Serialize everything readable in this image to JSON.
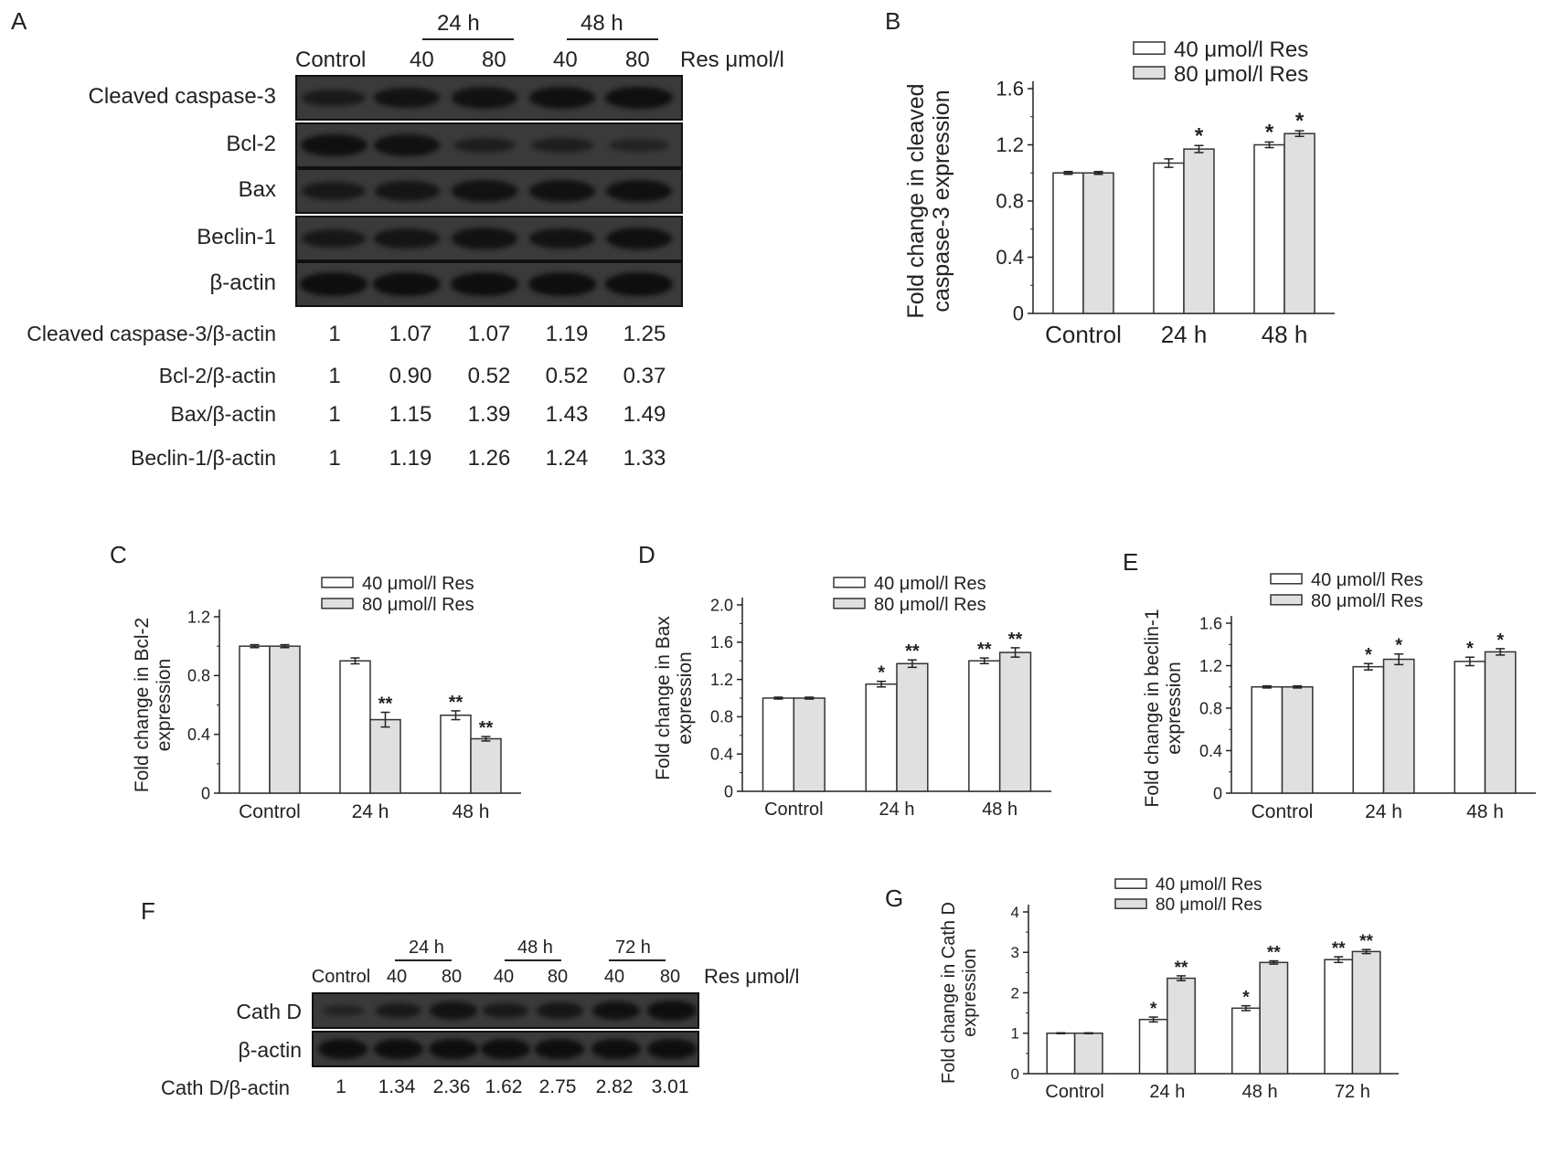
{
  "panels": {
    "A": "A",
    "B": "B",
    "C": "C",
    "D": "D",
    "E": "E",
    "F": "F",
    "G": "G"
  },
  "blot_a": {
    "time_labels": [
      "24 h",
      "48 h"
    ],
    "lane_labels": [
      "Control",
      "40",
      "80",
      "40",
      "80"
    ],
    "unit_label": "Res μmol/l",
    "rows": [
      {
        "label": "Cleaved caspase-3",
        "intensity": [
          0.55,
          0.8,
          0.82,
          0.88,
          0.92
        ]
      },
      {
        "label": "Bcl-2",
        "intensity": [
          0.9,
          0.85,
          0.4,
          0.4,
          0.25
        ]
      },
      {
        "label": "Bax",
        "intensity": [
          0.6,
          0.7,
          0.82,
          0.85,
          0.88
        ]
      },
      {
        "label": "Beclin-1",
        "intensity": [
          0.65,
          0.72,
          0.82,
          0.8,
          0.88
        ]
      },
      {
        "label": "β-actin",
        "intensity": [
          0.95,
          0.95,
          0.95,
          0.95,
          0.95
        ]
      }
    ],
    "ratios": [
      {
        "label": "Cleaved caspase-3/β-actin",
        "values": [
          "1",
          "1.07",
          "1.07",
          "1.19",
          "1.25"
        ]
      },
      {
        "label": "Bcl-2/β-actin",
        "values": [
          "1",
          "0.90",
          "0.52",
          "0.52",
          "0.37"
        ]
      },
      {
        "label": "Bax/β-actin",
        "values": [
          "1",
          "1.15",
          "1.39",
          "1.43",
          "1.49"
        ]
      },
      {
        "label": "Beclin-1/β-actin",
        "values": [
          "1",
          "1.19",
          "1.26",
          "1.24",
          "1.33"
        ]
      }
    ]
  },
  "blot_f": {
    "time_labels": [
      "24 h",
      "48 h",
      "72 h"
    ],
    "lane_labels": [
      "Control",
      "40",
      "80",
      "40",
      "80",
      "40",
      "80"
    ],
    "unit_label": "Res μmol/l",
    "rows": [
      {
        "label": "Cath D",
        "intensity": [
          0.3,
          0.6,
          0.8,
          0.62,
          0.7,
          0.88,
          0.95
        ]
      },
      {
        "label": "β-actin",
        "intensity": [
          0.95,
          0.95,
          0.95,
          0.95,
          0.95,
          0.95,
          0.95
        ]
      }
    ],
    "ratio": {
      "label": "Cath D/β-actin",
      "values": [
        "1",
        "1.34",
        "2.36",
        "1.62",
        "2.75",
        "2.82",
        "3.01"
      ]
    }
  },
  "colors": {
    "bar_40": "#ffffff",
    "bar_80": "#e0e0e0",
    "bar_stroke": "#333333"
  },
  "chart_data": [
    {
      "id": "B",
      "type": "bar",
      "ylabel": [
        "Fold change in cleaved",
        "caspase-3 expression"
      ],
      "categories": [
        "Control",
        "24 h",
        "48 h"
      ],
      "ylim": [
        0,
        1.6
      ],
      "yticks": [
        "0",
        "0.4",
        "0.8",
        "1.2",
        "1.6"
      ],
      "series": [
        {
          "name": "40 μmol/l Res",
          "values": [
            1.0,
            1.07,
            1.2
          ],
          "errors": [
            0.01,
            0.03,
            0.02
          ],
          "marks": [
            "",
            "",
            "*"
          ]
        },
        {
          "name": "80 μmol/l Res",
          "values": [
            1.0,
            1.17,
            1.28
          ],
          "errors": [
            0.01,
            0.025,
            0.02
          ],
          "marks": [
            "",
            "*",
            "*"
          ]
        }
      ]
    },
    {
      "id": "C",
      "type": "bar",
      "ylabel": [
        "Fold change in Bcl-2",
        "expression"
      ],
      "categories": [
        "Control",
        "24 h",
        "48 h"
      ],
      "ylim": [
        0,
        1.2
      ],
      "yticks": [
        "0",
        "0.4",
        "0.8",
        "1.2"
      ],
      "series": [
        {
          "name": "40 μmol/l Res",
          "values": [
            1.0,
            0.9,
            0.53
          ],
          "errors": [
            0.01,
            0.02,
            0.03
          ],
          "marks": [
            "",
            "",
            "**"
          ]
        },
        {
          "name": "80 μmol/l Res",
          "values": [
            1.0,
            0.5,
            0.37
          ],
          "errors": [
            0.01,
            0.05,
            0.015
          ],
          "marks": [
            "",
            "**",
            "**"
          ]
        }
      ]
    },
    {
      "id": "D",
      "type": "bar",
      "ylabel": [
        "Fold change in Bax",
        "expression"
      ],
      "categories": [
        "Control",
        "24 h",
        "48 h"
      ],
      "ylim": [
        0,
        2.0
      ],
      "yticks": [
        "0",
        "0.4",
        "0.8",
        "1.2",
        "1.6",
        "2.0"
      ],
      "series": [
        {
          "name": "40 μmol/l Res",
          "values": [
            1.0,
            1.15,
            1.4
          ],
          "errors": [
            0.01,
            0.03,
            0.03
          ],
          "marks": [
            "",
            "*",
            "**"
          ]
        },
        {
          "name": "80 μmol/l Res",
          "values": [
            1.0,
            1.37,
            1.49
          ],
          "errors": [
            0.01,
            0.04,
            0.05
          ],
          "marks": [
            "",
            "**",
            "**"
          ]
        }
      ]
    },
    {
      "id": "E",
      "type": "bar",
      "ylabel": [
        "Fold change in beclin-1",
        "expression"
      ],
      "categories": [
        "Control",
        "24 h",
        "48 h"
      ],
      "ylim": [
        0,
        1.6
      ],
      "yticks": [
        "0",
        "0.4",
        "0.8",
        "1.2",
        "1.6"
      ],
      "series": [
        {
          "name": "40 μmol/l Res",
          "values": [
            1.0,
            1.19,
            1.24
          ],
          "errors": [
            0.01,
            0.03,
            0.04
          ],
          "marks": [
            "",
            "*",
            "*"
          ]
        },
        {
          "name": "80 μmol/l Res",
          "values": [
            1.0,
            1.26,
            1.33
          ],
          "errors": [
            0.01,
            0.05,
            0.03
          ],
          "marks": [
            "",
            "*",
            "*"
          ]
        }
      ]
    },
    {
      "id": "G",
      "type": "bar",
      "ylabel": [
        "Fold change in Cath D",
        "expression"
      ],
      "categories": [
        "Control",
        "24 h",
        "48 h",
        "72 h"
      ],
      "ylim": [
        0,
        4
      ],
      "yticks": [
        "0",
        "1",
        "2",
        "3",
        "4"
      ],
      "series": [
        {
          "name": "40 μmol/l Res",
          "values": [
            1.0,
            1.34,
            1.62,
            2.82
          ],
          "errors": [
            0.01,
            0.06,
            0.06,
            0.07
          ],
          "marks": [
            "",
            "*",
            "*",
            "**"
          ]
        },
        {
          "name": "80 μmol/l Res",
          "values": [
            1.0,
            2.36,
            2.75,
            3.02
          ],
          "errors": [
            0.01,
            0.06,
            0.04,
            0.05
          ],
          "marks": [
            "",
            "**",
            "**",
            "**"
          ]
        }
      ]
    }
  ]
}
